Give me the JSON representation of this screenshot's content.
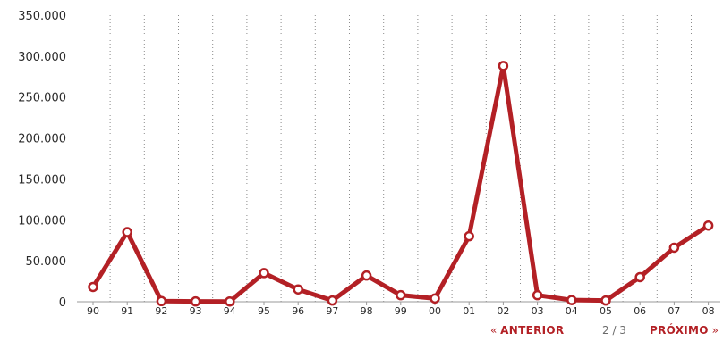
{
  "chart_data": {
    "type": "line",
    "categories": [
      "90",
      "91",
      "92",
      "93",
      "94",
      "95",
      "96",
      "97",
      "98",
      "99",
      "00",
      "01",
      "02",
      "03",
      "04",
      "05",
      "06",
      "07",
      "08"
    ],
    "series": [
      {
        "values": [
          18000,
          85000,
          800,
          400,
          300,
          35000,
          15000,
          1500,
          32000,
          8000,
          4000,
          80000,
          288000,
          8000,
          2000,
          1500,
          30000,
          66000,
          93000
        ]
      }
    ],
    "y_ticks": [
      "0",
      "50.000",
      "100.000",
      "150.000",
      "200.000",
      "250.000",
      "300.000",
      "350.000"
    ],
    "ylim": [
      0,
      350000
    ],
    "grid": "vertical dotted",
    "colors": {
      "line": "#b32025",
      "marker_fill": "#ffffff"
    }
  },
  "pagination": {
    "prev_arrow": "«",
    "prev_label": "ANTERIOR",
    "page_indicator": "2 / 3",
    "next_label": "PRÓXIMO",
    "next_arrow": "»"
  }
}
